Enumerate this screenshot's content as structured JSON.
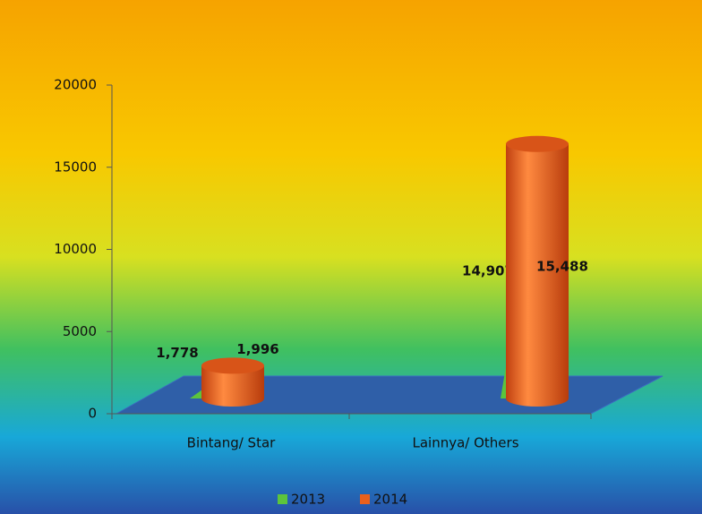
{
  "chart_data": {
    "type": "bar",
    "categories": [
      "Bintang/ Star",
      "Lainnya/ Others"
    ],
    "series": [
      {
        "name": "2013",
        "color": "#5cc43c",
        "values": [
          1778,
          14907
        ],
        "value_labels": [
          "1,778",
          "14,907"
        ]
      },
      {
        "name": "2014",
        "color": "#e8601c",
        "values": [
          1996,
          15488
        ],
        "value_labels": [
          "1,996",
          "15,488"
        ]
      }
    ],
    "ylim": [
      0,
      20000
    ],
    "yticks": [
      0,
      5000,
      10000,
      15000,
      20000
    ],
    "grid": false,
    "legend": "bottom"
  }
}
